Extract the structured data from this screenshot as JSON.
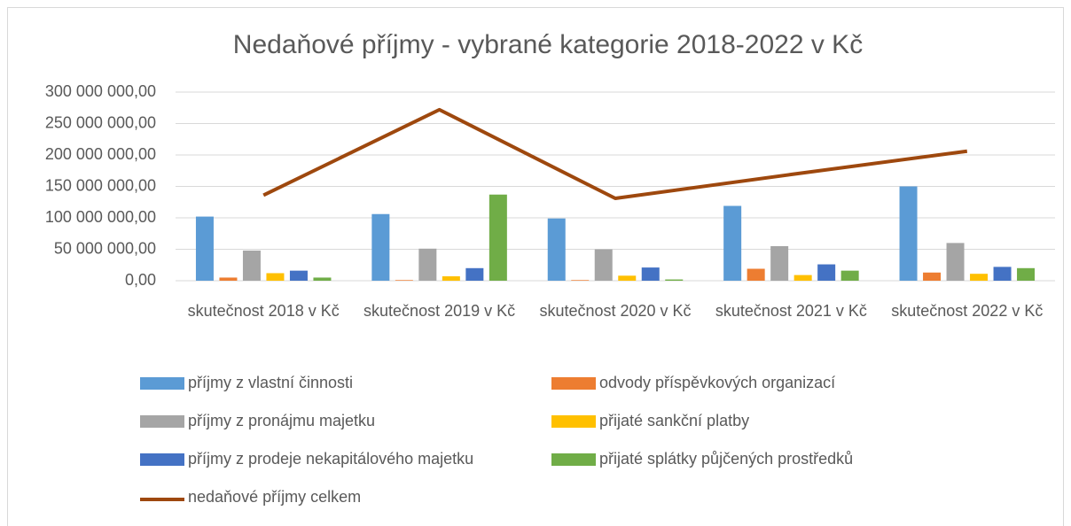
{
  "chart_data": {
    "type": "bar",
    "title": "Nedaňové příjmy - vybrané kategorie 2018-2022 v Kč",
    "categories": [
      "skutečnost 2018 v Kč",
      "skutečnost 2019 v Kč",
      "skutečnost 2020 v Kč",
      "skutečnost 2021 v Kč",
      "skutečnost 2022 v Kč"
    ],
    "ylim": [
      0,
      300000000
    ],
    "yticks": [
      {
        "value": 0,
        "label": "0,00"
      },
      {
        "value": 50000000,
        "label": "50 000 000,00"
      },
      {
        "value": 100000000,
        "label": "100 000 000,00"
      },
      {
        "value": 150000000,
        "label": "150 000 000,00"
      },
      {
        "value": 200000000,
        "label": "200 000 000,00"
      },
      {
        "value": 250000000,
        "label": "250 000 000,00"
      },
      {
        "value": 300000000,
        "label": "300 000 000,00"
      }
    ],
    "grid": true,
    "series": [
      {
        "name": "příjmy z vlastní činnosti",
        "color": "#5b9bd5",
        "values": [
          102000000,
          106000000,
          99000000,
          119000000,
          150000000
        ]
      },
      {
        "name": "odvody příspěvkových organizací",
        "color": "#ed7d31",
        "values": [
          5000000,
          1000000,
          1000000,
          19000000,
          13000000
        ]
      },
      {
        "name": "příjmy z pronájmu majetku",
        "color": "#a5a5a5",
        "values": [
          48000000,
          51000000,
          50000000,
          55000000,
          60000000
        ]
      },
      {
        "name": "přijaté sankční platby",
        "color": "#ffc000",
        "values": [
          12000000,
          7000000,
          8000000,
          9000000,
          11000000
        ]
      },
      {
        "name": "příjmy z prodeje nekapitálového majetku",
        "color": "#4472c4",
        "values": [
          16000000,
          20000000,
          21000000,
          26000000,
          22000000
        ]
      },
      {
        "name": "přijaté splátky půjčených prostředků",
        "color": "#70ad47",
        "values": [
          5000000,
          137000000,
          2000000,
          16000000,
          20000000
        ]
      },
      {
        "name": "nedaňové příjmy celkem",
        "color": "#9e480e",
        "type": "line",
        "values": [
          136000000,
          272000000,
          131000000,
          169000000,
          206000000
        ]
      }
    ]
  }
}
